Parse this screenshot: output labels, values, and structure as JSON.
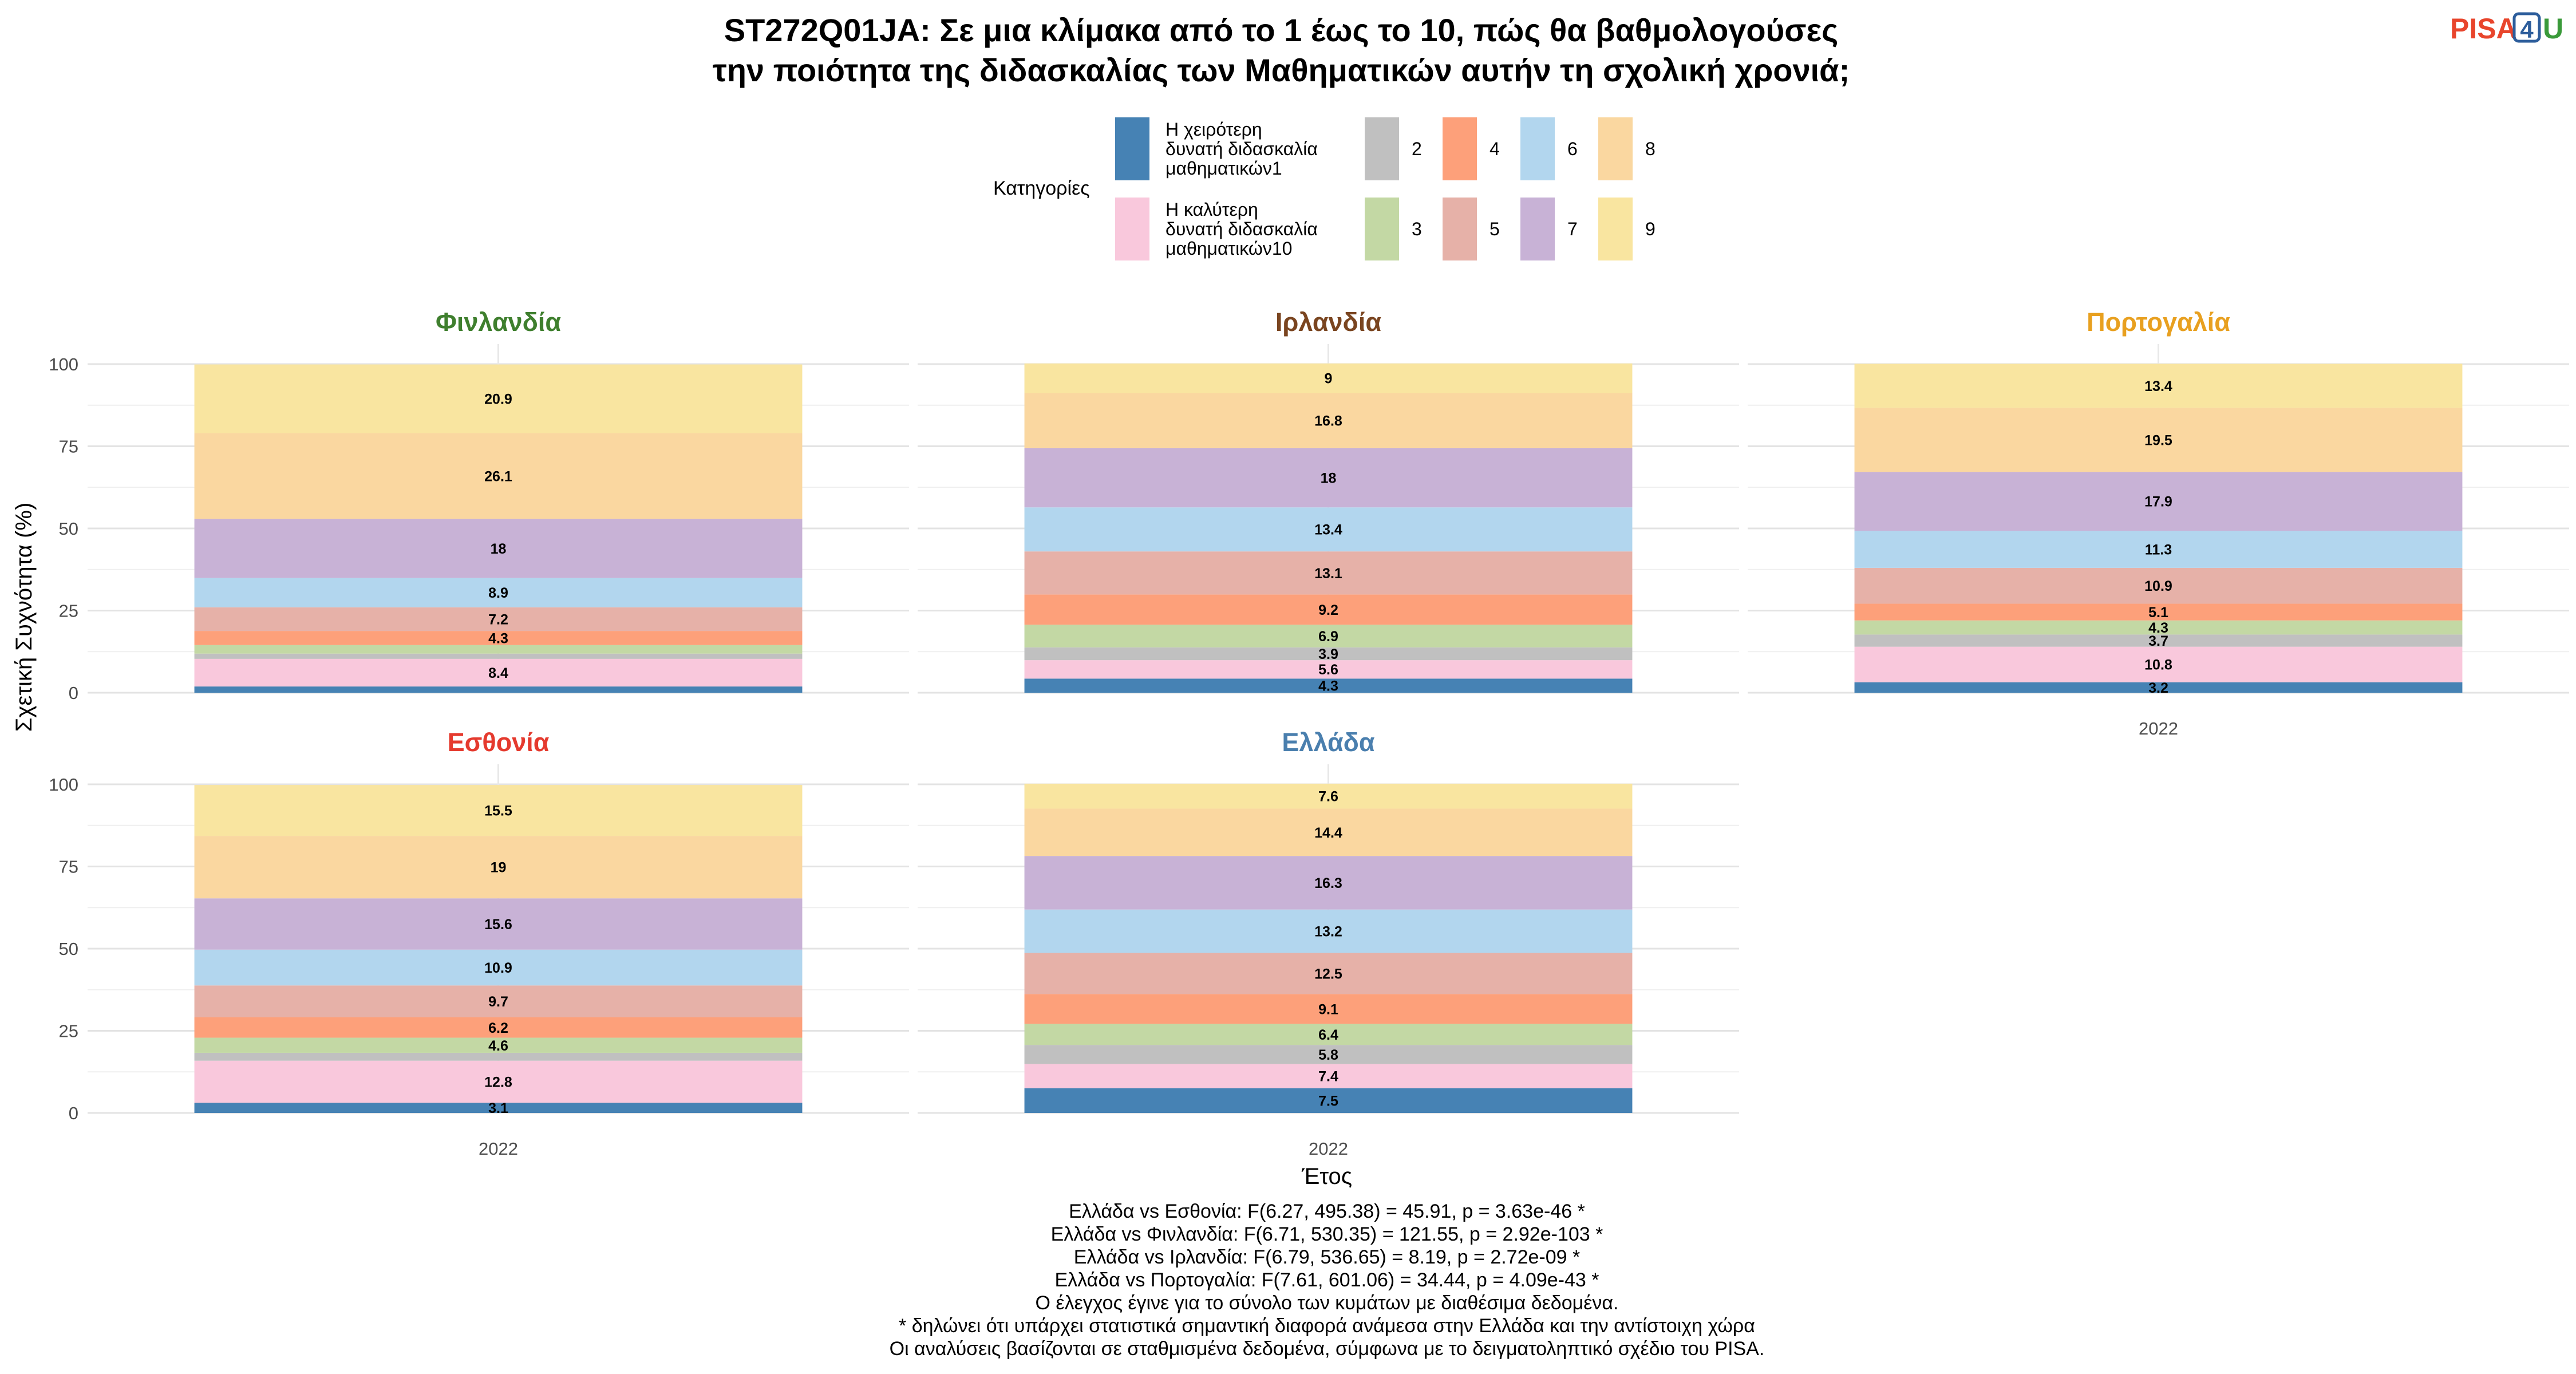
{
  "title_lines": [
    "ST272Q01JA: Σε μια κλίμακα από το 1 έως το 10, πώς θα βαθμολογούσες",
    "την ποιότητα της διδασκαλίας των Μαθηματικών αυτήν τη σχολική χρονιά;"
  ],
  "logo": {
    "pisa": "PISA",
    "digit": "4",
    "u": "U",
    "pisa_color": "#e8452c",
    "digit_color": "#2c5d9b",
    "u_color": "#3a9a3a"
  },
  "legend": {
    "title": "Κατηγορίες",
    "items": [
      {
        "lines": [
          "Η χειρότερη",
          "δυνατή διδασκαλία",
          "μαθηματικών1"
        ],
        "color": "#4682b4"
      },
      {
        "lines": [
          "Η καλύτερη",
          "δυνατή διδασκαλία",
          "μαθηματικών10"
        ],
        "color": "#f9c8dc"
      },
      {
        "lines": [
          "2"
        ],
        "color": "#c0c0c0"
      },
      {
        "lines": [
          "3"
        ],
        "color": "#c3d8a4"
      },
      {
        "lines": [
          "4"
        ],
        "color": "#fda07a"
      },
      {
        "lines": [
          "5"
        ],
        "color": "#e6b1a8"
      },
      {
        "lines": [
          "6"
        ],
        "color": "#b2d6ee"
      },
      {
        "lines": [
          "7"
        ],
        "color": "#c8b2d6"
      },
      {
        "lines": [
          "8"
        ],
        "color": "#fad7a0"
      },
      {
        "lines": [
          "9"
        ],
        "color": "#f9e5a0"
      }
    ]
  },
  "xlabel": "Έτος",
  "ylabel": "Σχετική Συχνότητα (%)",
  "footnotes": [
    "Ελλάδα vs Εσθονία: F(6.27, 495.38) = 45.91, p = 3.63e-46 *",
    "Ελλάδα vs Φινλανδία: F(6.71, 530.35) = 121.55, p = 2.92e-103 *",
    "Ελλάδα vs Ιρλανδία: F(6.79, 536.65) = 8.19, p = 2.72e-09 *",
    "Ελλάδα vs Πορτογαλία: F(7.61, 601.06) = 34.44, p = 4.09e-43 *",
    "Ο έλεγχος έγινε για το σύνολο των κυμάτων με διαθέσιμα δεδομένα.",
    "* δηλώνει ότι υπάρχει στατιστικά σημαντική διαφορά ανάμεσα στην Ελλάδα και την αντίστοιχη χώρα",
    "Οι αναλύσεις βασίζονται σε σταθμισμένα δεδομένα, σύμφωνα με το δειγματοληπτικό σχέδιο του PISA."
  ],
  "chart_data": {
    "type": "bar",
    "stacked": true,
    "x": [
      "2022"
    ],
    "ylim": [
      0,
      100
    ],
    "yticks": [
      0,
      25,
      50,
      75,
      100
    ],
    "stack_order": [
      "1",
      "10",
      "2",
      "3",
      "4",
      "5",
      "6",
      "7",
      "8",
      "9"
    ],
    "category_colors": {
      "1": "#4682b4",
      "10": "#f9c8dc",
      "2": "#c0c0c0",
      "3": "#c3d8a4",
      "4": "#fda07a",
      "5": "#e6b1a8",
      "6": "#b2d6ee",
      "7": "#c8b2d6",
      "8": "#fad7a0",
      "9": "#f9e5a0"
    },
    "facets": [
      {
        "name": "Φινλανδία",
        "color": "#3f7f2e",
        "show_x_tick": false,
        "show_y_ticks": true,
        "values": {
          "1": 1.9,
          "10": 8.4,
          "2": 1.6,
          "3": 2.6,
          "4": 4.3,
          "5": 7.2,
          "6": 8.9,
          "7": 18,
          "8": 26.1,
          "9": 20.9
        },
        "labels": {
          "10": "8.4",
          "4": "4.3",
          "5": "7.2",
          "6": "8.9",
          "7": "18",
          "8": "26.1",
          "9": "20.9"
        }
      },
      {
        "name": "Ιρλανδία",
        "color": "#7a4520",
        "show_x_tick": false,
        "show_y_ticks": false,
        "values": {
          "1": 4.3,
          "10": 5.6,
          "2": 3.9,
          "3": 6.9,
          "4": 9.2,
          "5": 13.1,
          "6": 13.4,
          "7": 18,
          "8": 16.8,
          "9": 9
        },
        "labels": {
          "1": "4.3",
          "10": "5.6",
          "2": "3.9",
          "3": "6.9",
          "4": "9.2",
          "5": "13.1",
          "6": "13.4",
          "7": "18",
          "8": "16.8",
          "9": "9"
        }
      },
      {
        "name": "Πορτογαλία",
        "color": "#e8a020",
        "show_x_tick": true,
        "show_y_ticks": false,
        "values": {
          "1": 3.2,
          "10": 10.8,
          "2": 3.7,
          "3": 4.3,
          "4": 5.1,
          "5": 10.9,
          "6": 11.3,
          "7": 17.9,
          "8": 19.5,
          "9": 13.4
        },
        "labels": {
          "1": "3.2",
          "10": "10.8",
          "2": "3.7",
          "3": "4.3",
          "4": "5.1",
          "5": "10.9",
          "6": "11.3",
          "7": "17.9",
          "8": "19.5",
          "9": "13.4"
        }
      },
      {
        "name": "Εσθονία",
        "color": "#e53a2e",
        "show_x_tick": true,
        "show_y_ticks": true,
        "values": {
          "1": 3.1,
          "10": 12.8,
          "2": 2.4,
          "3": 4.6,
          "4": 6.2,
          "5": 9.7,
          "6": 10.9,
          "7": 15.6,
          "8": 19,
          "9": 15.5
        },
        "labels": {
          "1": "3.1",
          "10": "12.8",
          "3": "4.6",
          "4": "6.2",
          "5": "9.7",
          "6": "10.9",
          "7": "15.6",
          "8": "19",
          "9": "15.5"
        }
      },
      {
        "name": "Ελλάδα",
        "color": "#4a7fae",
        "show_x_tick": true,
        "show_y_ticks": false,
        "values": {
          "1": 7.5,
          "10": 7.4,
          "2": 5.8,
          "3": 6.4,
          "4": 9.1,
          "5": 12.5,
          "6": 13.2,
          "7": 16.3,
          "8": 14.4,
          "9": 7.6
        },
        "labels": {
          "1": "7.5",
          "10": "7.4",
          "2": "5.8",
          "3": "6.4",
          "4": "9.1",
          "5": "12.5",
          "6": "13.2",
          "7": "16.3",
          "8": "14.4",
          "9": "7.6"
        }
      }
    ]
  }
}
